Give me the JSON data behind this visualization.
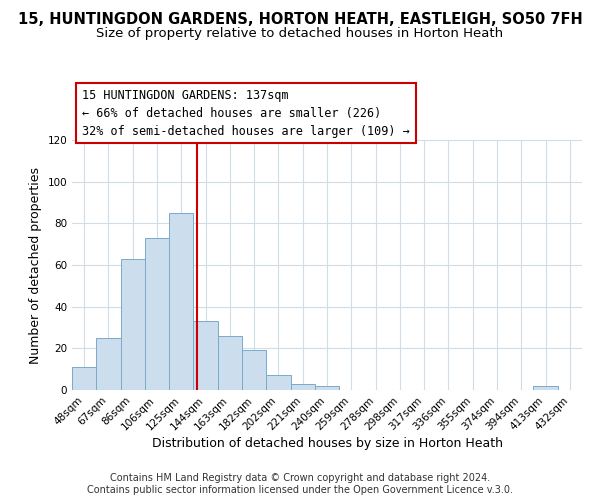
{
  "title": "15, HUNTINGDON GARDENS, HORTON HEATH, EASTLEIGH, SO50 7FH",
  "subtitle": "Size of property relative to detached houses in Horton Heath",
  "xlabel": "Distribution of detached houses by size in Horton Heath",
  "ylabel": "Number of detached properties",
  "bar_color": "#ccdded",
  "bar_edge_color": "#7aaaca",
  "bin_labels": [
    "48sqm",
    "67sqm",
    "86sqm",
    "106sqm",
    "125sqm",
    "144sqm",
    "163sqm",
    "182sqm",
    "202sqm",
    "221sqm",
    "240sqm",
    "259sqm",
    "278sqm",
    "298sqm",
    "317sqm",
    "336sqm",
    "355sqm",
    "374sqm",
    "394sqm",
    "413sqm",
    "432sqm"
  ],
  "bar_heights": [
    11,
    25,
    63,
    73,
    85,
    33,
    26,
    19,
    7,
    3,
    2,
    0,
    0,
    0,
    0,
    0,
    0,
    0,
    0,
    2,
    0
  ],
  "ylim": [
    0,
    120
  ],
  "yticks": [
    0,
    20,
    40,
    60,
    80,
    100,
    120
  ],
  "annotation_line1": "15 HUNTINGDON GARDENS: 137sqm",
  "annotation_line2": "← 66% of detached houses are smaller (226)",
  "annotation_line3": "32% of semi-detached houses are larger (109) →",
  "vline_color": "#cc0000",
  "footer_text": "Contains HM Land Registry data © Crown copyright and database right 2024.\nContains public sector information licensed under the Open Government Licence v.3.0.",
  "background_color": "#ffffff",
  "grid_color": "#d0dce8",
  "title_fontsize": 10.5,
  "subtitle_fontsize": 9.5,
  "axis_label_fontsize": 9,
  "tick_fontsize": 7.5,
  "annotation_fontsize": 8.5,
  "footer_fontsize": 7
}
